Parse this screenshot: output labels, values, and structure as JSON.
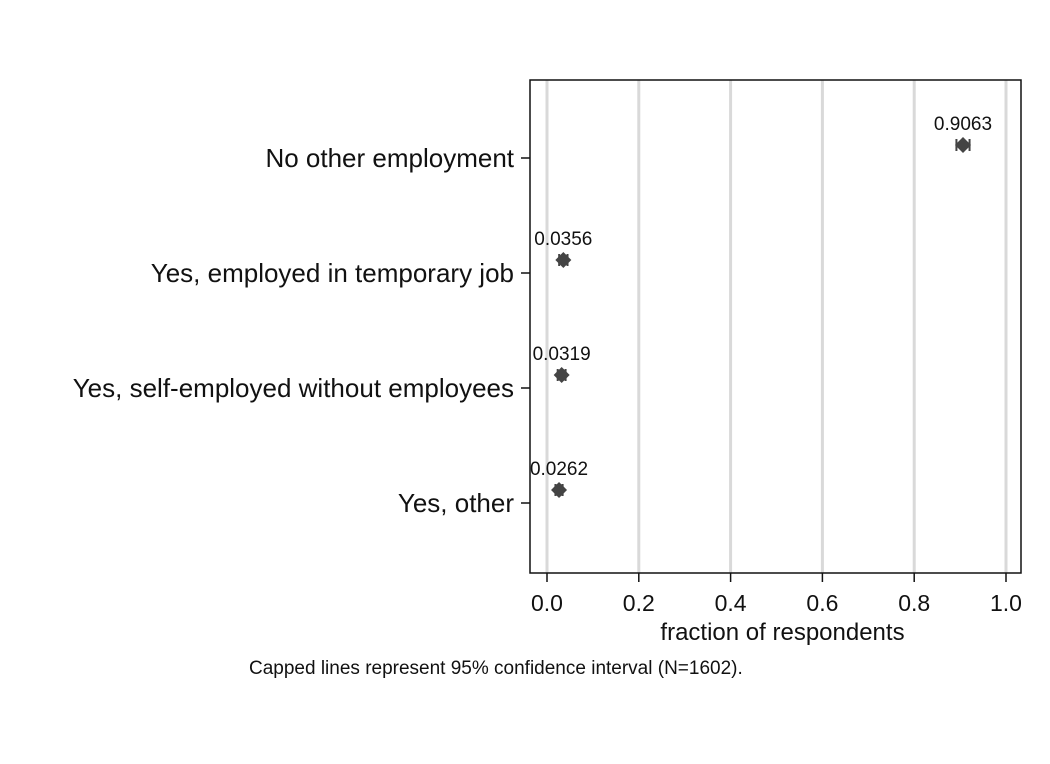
{
  "chart_data": {
    "type": "scatter",
    "orientation": "horizontal",
    "categories": [
      "No other employment",
      "Yes, employed in temporary job",
      "Yes, self-employed without employees",
      "Yes, other"
    ],
    "values": [
      0.9063,
      0.0356,
      0.0319,
      0.0262
    ],
    "data_labels": [
      "0.9063",
      "0.0356",
      "0.0319",
      "0.0262"
    ],
    "ci_lower": [
      0.892,
      0.0265,
      0.0233,
      0.0184
    ],
    "ci_upper": [
      0.9206,
      0.0447,
      0.0405,
      0.034
    ],
    "xlabel": "fraction of respondents",
    "xlim": [
      0,
      1
    ],
    "xticks": [
      0,
      0.2,
      0.4,
      0.6,
      0.8,
      1
    ],
    "xtick_labels": [
      "0.0",
      "0.2",
      "0.4",
      "0.6",
      "0.8",
      "1.0"
    ],
    "grid": "vertical",
    "note": "Capped lines represent 95% confidence interval (N=1602).",
    "colors": {
      "marker": "#444444",
      "grid": "#d9d9d9",
      "axis": "#111111"
    }
  }
}
